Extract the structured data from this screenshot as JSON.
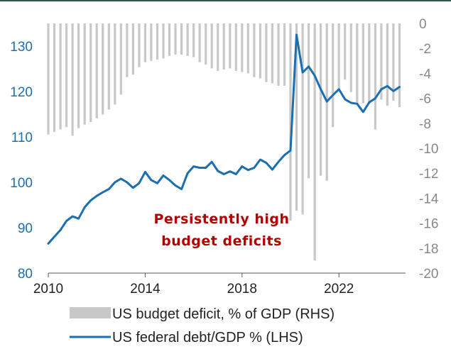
{
  "chart_data": {
    "type": "bar+line",
    "title": "",
    "xlabel": "",
    "x_ticks": [
      "2010",
      "2014",
      "2018",
      "2022"
    ],
    "x_range": [
      2010.0,
      2024.75
    ],
    "left_axis": {
      "ticks": [
        80,
        90,
        100,
        110,
        120,
        130
      ],
      "range": [
        80,
        135
      ],
      "color": "#1a6fb0"
    },
    "right_axis": {
      "ticks": [
        0,
        -2,
        -4,
        -6,
        -8,
        -10,
        -12,
        -14,
        -16,
        -18,
        -20
      ],
      "range": [
        -20,
        0
      ],
      "color": "#888888"
    },
    "colors": {
      "bars": "#c8c8c8",
      "line": "#1a6fb0",
      "annotation": "#b30000",
      "frame": "#2e5a46"
    },
    "annotation": {
      "lines": [
        "Persistently high",
        "budget deficits"
      ]
    },
    "legend": {
      "placement": "bottom-center"
    },
    "series": [
      {
        "name": "US budget deficit, % of GDP (RHS)",
        "type": "bar",
        "axis": "right",
        "x": [
          2010.0,
          2010.25,
          2010.5,
          2010.75,
          2011.0,
          2011.25,
          2011.5,
          2011.75,
          2012.0,
          2012.25,
          2012.5,
          2012.75,
          2013.0,
          2013.25,
          2013.5,
          2013.75,
          2014.0,
          2014.25,
          2014.5,
          2014.75,
          2015.0,
          2015.25,
          2015.5,
          2015.75,
          2016.0,
          2016.25,
          2016.5,
          2016.75,
          2017.0,
          2017.25,
          2017.5,
          2017.75,
          2018.0,
          2018.25,
          2018.5,
          2018.75,
          2019.0,
          2019.25,
          2019.5,
          2019.75,
          2020.0,
          2020.25,
          2020.5,
          2020.75,
          2021.0,
          2021.25,
          2021.5,
          2021.75,
          2022.0,
          2022.25,
          2022.5,
          2022.75,
          2023.0,
          2023.25,
          2023.5,
          2023.75,
          2024.0,
          2024.25,
          2024.5
        ],
        "values": [
          -8.9,
          -8.7,
          -8.5,
          -8.3,
          -9.0,
          -8.4,
          -8.1,
          -7.9,
          -7.6,
          -7.3,
          -6.9,
          -6.5,
          -5.7,
          -4.3,
          -4.1,
          -3.5,
          -3.1,
          -3.0,
          -2.9,
          -2.8,
          -2.6,
          -2.5,
          -2.5,
          -2.6,
          -2.7,
          -3.1,
          -3.3,
          -3.6,
          -3.8,
          -3.7,
          -3.6,
          -3.8,
          -3.9,
          -4.0,
          -4.3,
          -4.4,
          -4.7,
          -4.8,
          -5.0,
          -5.0,
          -15.8,
          -15.0,
          -15.3,
          -12.4,
          -19.0,
          -12.2,
          -12.6,
          -8.3,
          -5.2,
          -4.5,
          -5.5,
          -6.5,
          -6.4,
          -6.4,
          -8.5,
          -6.1,
          -6.6,
          -6.2,
          -6.7
        ]
      },
      {
        "name": "US federal debt/GDP % (LHS)",
        "type": "line",
        "axis": "left",
        "x": [
          2010.0,
          2010.25,
          2010.5,
          2010.75,
          2011.0,
          2011.25,
          2011.5,
          2011.75,
          2012.0,
          2012.25,
          2012.5,
          2012.75,
          2013.0,
          2013.25,
          2013.5,
          2013.75,
          2014.0,
          2014.25,
          2014.5,
          2014.75,
          2015.0,
          2015.25,
          2015.5,
          2015.75,
          2016.0,
          2016.25,
          2016.5,
          2016.75,
          2017.0,
          2017.25,
          2017.5,
          2017.75,
          2018.0,
          2018.25,
          2018.5,
          2018.75,
          2019.0,
          2019.25,
          2019.5,
          2019.75,
          2020.0,
          2020.25,
          2020.5,
          2020.75,
          2021.0,
          2021.25,
          2021.5,
          2021.75,
          2022.0,
          2022.25,
          2022.5,
          2022.75,
          2023.0,
          2023.25,
          2023.5,
          2023.75,
          2024.0,
          2024.25,
          2024.5
        ],
        "values": [
          86.5,
          88.0,
          89.5,
          91.5,
          92.5,
          92.0,
          94.5,
          96.0,
          97.0,
          97.8,
          98.5,
          100.0,
          100.8,
          100.0,
          98.8,
          99.8,
          102.3,
          100.5,
          99.8,
          101.5,
          100.5,
          99.3,
          98.5,
          102.0,
          103.5,
          103.2,
          103.2,
          104.5,
          102.5,
          101.8,
          102.4,
          101.8,
          103.5,
          102.7,
          103.2,
          105.0,
          104.3,
          102.8,
          104.5,
          106.0,
          107.0,
          132.5,
          124.2,
          125.5,
          123.5,
          120.5,
          117.8,
          119.2,
          120.5,
          118.3,
          117.5,
          117.3,
          115.5,
          117.6,
          118.5,
          120.5,
          121.2,
          120.1,
          121.0
        ]
      }
    ]
  }
}
